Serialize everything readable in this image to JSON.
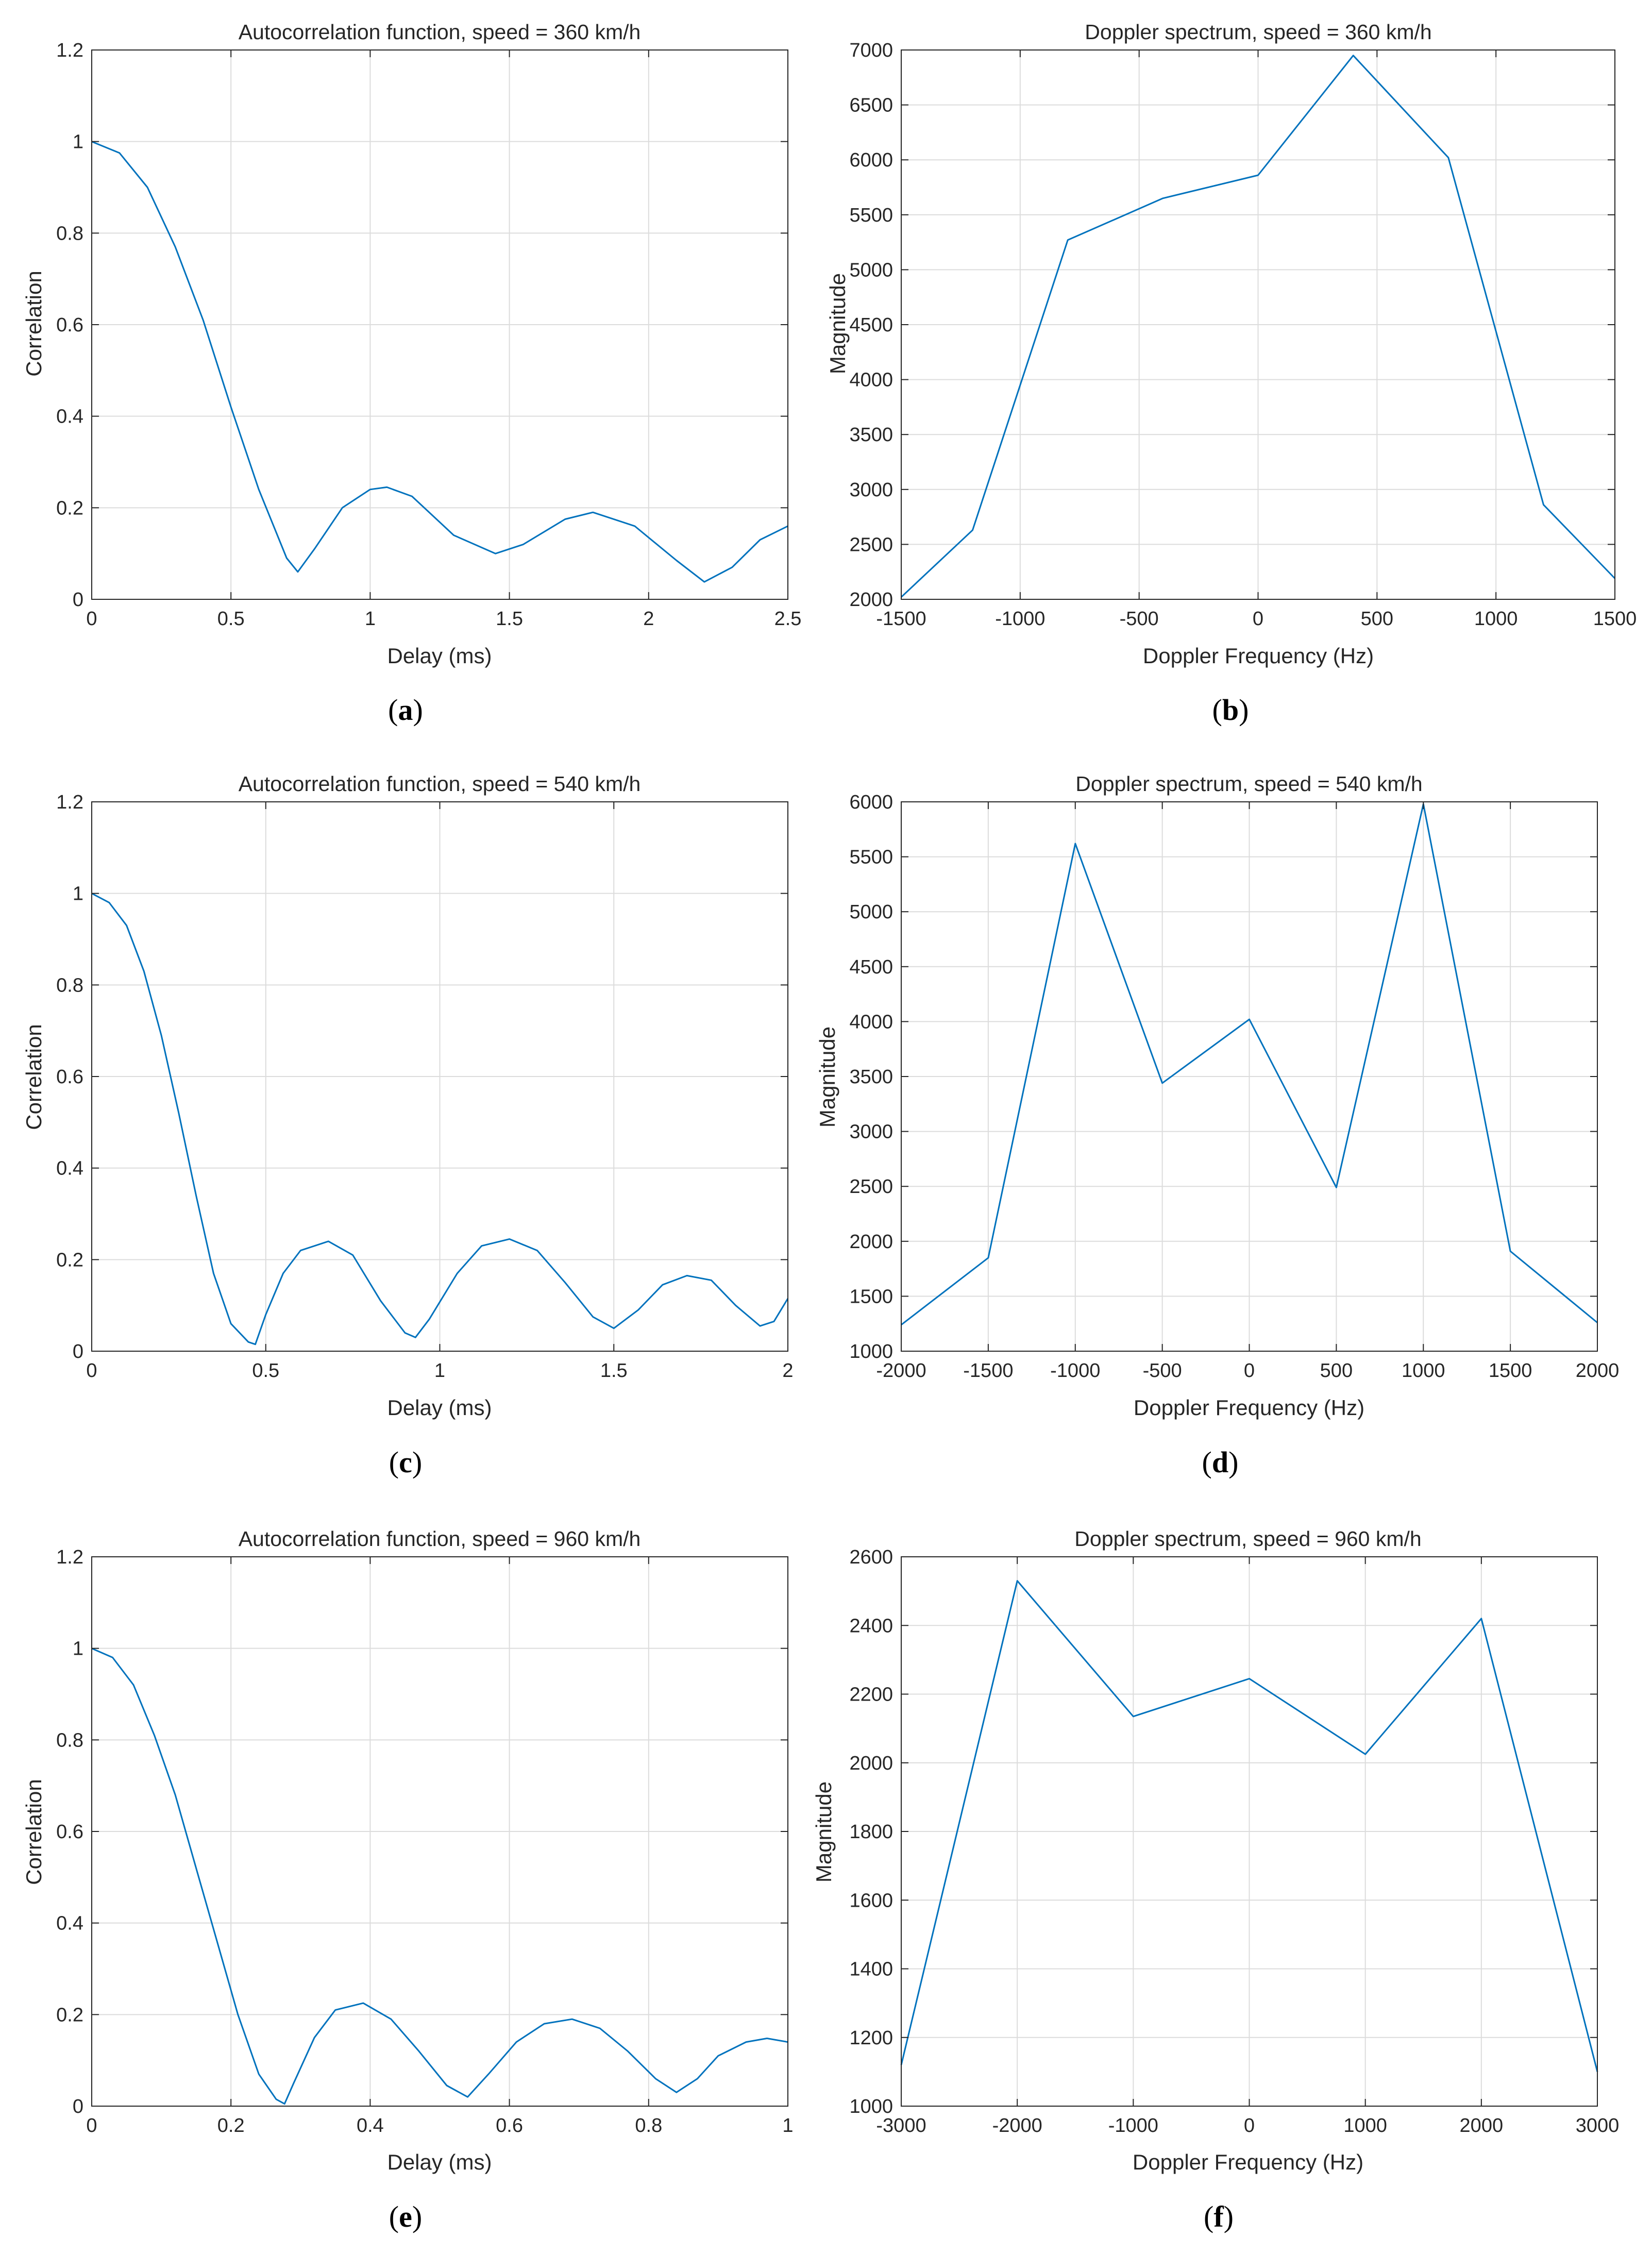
{
  "colors": {
    "series": "#0072bd",
    "axis": "#262626",
    "grid": "#dcdcdc"
  },
  "chart_data": [
    {
      "id": "a",
      "type": "line",
      "caption": "a",
      "title": "Autocorrelation function, speed = 360 km/h",
      "xlabel": "Delay (ms)",
      "ylabel": "Correlation",
      "xlim": [
        0,
        2.5
      ],
      "ylim": [
        0,
        1.2
      ],
      "xticks": [
        0,
        0.5,
        1,
        1.5,
        2,
        2.5
      ],
      "xtick_labels": [
        "0",
        "0.5",
        "1",
        "1.5",
        "2",
        "2.5"
      ],
      "yticks": [
        0,
        0.2,
        0.4,
        0.6,
        0.8,
        1,
        1.2
      ],
      "ytick_labels": [
        "0",
        "0.2",
        "0.4",
        "0.6",
        "0.8",
        "1",
        "1.2"
      ],
      "grid": true,
      "series": [
        {
          "name": "autocorrelation",
          "x": [
            0,
            0.1,
            0.2,
            0.3,
            0.4,
            0.5,
            0.6,
            0.7,
            0.74,
            0.8,
            0.9,
            1.0,
            1.06,
            1.15,
            1.3,
            1.45,
            1.55,
            1.7,
            1.8,
            1.95,
            2.1,
            2.2,
            2.3,
            2.4,
            2.5
          ],
          "y": [
            1.0,
            0.975,
            0.9,
            0.77,
            0.61,
            0.42,
            0.24,
            0.09,
            0.06,
            0.11,
            0.2,
            0.24,
            0.245,
            0.225,
            0.14,
            0.1,
            0.12,
            0.175,
            0.19,
            0.16,
            0.085,
            0.038,
            0.07,
            0.13,
            0.16
          ]
        }
      ]
    },
    {
      "id": "b",
      "type": "line",
      "caption": "b",
      "title": "Doppler spectrum, speed = 360 km/h",
      "xlabel": "Doppler Frequency (Hz)",
      "ylabel": "Magnitude",
      "xlim": [
        -1500,
        1500
      ],
      "ylim": [
        2000,
        7000
      ],
      "xticks": [
        -1500,
        -1000,
        -500,
        0,
        500,
        1000,
        1500
      ],
      "xtick_labels": [
        "-1500",
        "-1000",
        "-500",
        "0",
        "500",
        "1000",
        "1500"
      ],
      "yticks": [
        2000,
        2500,
        3000,
        3500,
        4000,
        4500,
        5000,
        5500,
        6000,
        6500,
        7000
      ],
      "ytick_labels": [
        "2000",
        "2500",
        "3000",
        "3500",
        "4000",
        "4500",
        "5000",
        "5500",
        "6000",
        "6500",
        "7000"
      ],
      "grid": true,
      "series": [
        {
          "name": "spectrum",
          "x": [
            -1500,
            -1200,
            -800,
            -400,
            0,
            400,
            800,
            1200,
            1500
          ],
          "y": [
            2020,
            2630,
            5270,
            5650,
            5860,
            6950,
            6020,
            2860,
            2190
          ]
        }
      ]
    },
    {
      "id": "c",
      "type": "line",
      "caption": "c",
      "title": "Autocorrelation function, speed = 540 km/h",
      "xlabel": "Delay (ms)",
      "ylabel": "Correlation",
      "xlim": [
        0,
        2
      ],
      "ylim": [
        0,
        1.2
      ],
      "xticks": [
        0,
        0.5,
        1,
        1.5,
        2
      ],
      "xtick_labels": [
        "0",
        "0.5",
        "1",
        "1.5",
        "2"
      ],
      "yticks": [
        0,
        0.2,
        0.4,
        0.6,
        0.8,
        1,
        1.2
      ],
      "ytick_labels": [
        "0",
        "0.2",
        "0.4",
        "0.6",
        "0.8",
        "1",
        "1.2"
      ],
      "grid": true,
      "series": [
        {
          "name": "autocorrelation",
          "x": [
            0,
            0.05,
            0.1,
            0.15,
            0.2,
            0.25,
            0.3,
            0.35,
            0.4,
            0.45,
            0.47,
            0.5,
            0.55,
            0.6,
            0.68,
            0.75,
            0.83,
            0.9,
            0.93,
            0.97,
            1.05,
            1.12,
            1.2,
            1.28,
            1.36,
            1.44,
            1.5,
            1.57,
            1.64,
            1.71,
            1.78,
            1.85,
            1.92,
            1.96,
            2.0
          ],
          "y": [
            1.0,
            0.98,
            0.93,
            0.83,
            0.69,
            0.52,
            0.34,
            0.17,
            0.06,
            0.02,
            0.015,
            0.08,
            0.17,
            0.22,
            0.24,
            0.21,
            0.11,
            0.04,
            0.03,
            0.07,
            0.17,
            0.23,
            0.245,
            0.22,
            0.15,
            0.075,
            0.05,
            0.09,
            0.145,
            0.165,
            0.155,
            0.1,
            0.055,
            0.065,
            0.115
          ]
        }
      ]
    },
    {
      "id": "d",
      "type": "line",
      "caption": "d",
      "title": "Doppler spectrum, speed = 540 km/h",
      "xlabel": "Doppler Frequency (Hz)",
      "ylabel": "Magnitude",
      "xlim": [
        -2000,
        2000
      ],
      "ylim": [
        1000,
        6000
      ],
      "xticks": [
        -2000,
        -1500,
        -1000,
        -500,
        0,
        500,
        1000,
        1500,
        2000
      ],
      "xtick_labels": [
        "-2000",
        "-1500",
        "-1000",
        "-500",
        "0",
        "500",
        "1000",
        "1500",
        "2000"
      ],
      "yticks": [
        1000,
        1500,
        2000,
        2500,
        3000,
        3500,
        4000,
        4500,
        5000,
        5500,
        6000
      ],
      "ytick_labels": [
        "1000",
        "1500",
        "2000",
        "2500",
        "3000",
        "3500",
        "4000",
        "4500",
        "5000",
        "5500",
        "6000"
      ],
      "grid": true,
      "series": [
        {
          "name": "spectrum",
          "x": [
            -2000,
            -1500,
            -1000,
            -500,
            0,
            500,
            1000,
            1500,
            2000
          ],
          "y": [
            1240,
            1850,
            5620,
            3440,
            4020,
            2490,
            5980,
            1910,
            1260
          ]
        }
      ]
    },
    {
      "id": "e",
      "type": "line",
      "caption": "e",
      "title": "Autocorrelation function, speed = 960 km/h",
      "xlabel": "Delay (ms)",
      "ylabel": "Correlation",
      "xlim": [
        0,
        1
      ],
      "ylim": [
        0,
        1.2
      ],
      "xticks": [
        0,
        0.2,
        0.4,
        0.6,
        0.8,
        1
      ],
      "xtick_labels": [
        "0",
        "0.2",
        "0.4",
        "0.6",
        "0.8",
        "1"
      ],
      "yticks": [
        0,
        0.2,
        0.4,
        0.6,
        0.8,
        1,
        1.2
      ],
      "ytick_labels": [
        "0",
        "0.2",
        "0.4",
        "0.6",
        "0.8",
        "1",
        "1.2"
      ],
      "grid": true,
      "series": [
        {
          "name": "autocorrelation",
          "x": [
            0,
            0.03,
            0.06,
            0.09,
            0.12,
            0.15,
            0.18,
            0.21,
            0.24,
            0.265,
            0.277,
            0.29,
            0.32,
            0.35,
            0.39,
            0.43,
            0.47,
            0.51,
            0.54,
            0.57,
            0.61,
            0.65,
            0.69,
            0.73,
            0.77,
            0.81,
            0.84,
            0.87,
            0.9,
            0.94,
            0.97,
            1.0
          ],
          "y": [
            1.0,
            0.98,
            0.92,
            0.81,
            0.68,
            0.52,
            0.36,
            0.2,
            0.07,
            0.015,
            0.005,
            0.05,
            0.15,
            0.21,
            0.225,
            0.19,
            0.12,
            0.045,
            0.02,
            0.07,
            0.14,
            0.18,
            0.19,
            0.17,
            0.12,
            0.06,
            0.03,
            0.06,
            0.11,
            0.14,
            0.148,
            0.14
          ]
        }
      ]
    },
    {
      "id": "f",
      "type": "line",
      "caption": "f",
      "title": "Doppler spectrum, speed = 960 km/h",
      "xlabel": "Doppler Frequency (Hz)",
      "ylabel": "Magnitude",
      "xlim": [
        -3000,
        3000
      ],
      "ylim": [
        1000,
        2600
      ],
      "xticks": [
        -3000,
        -2000,
        -1000,
        0,
        1000,
        2000,
        3000
      ],
      "xtick_labels": [
        "-3000",
        "-2000",
        "-1000",
        "0",
        "1000",
        "2000",
        "3000"
      ],
      "yticks": [
        1000,
        1200,
        1400,
        1600,
        1800,
        2000,
        2200,
        2400,
        2600
      ],
      "ytick_labels": [
        "1000",
        "1200",
        "1400",
        "1600",
        "1800",
        "2000",
        "2200",
        "2400",
        "2600"
      ],
      "grid": true,
      "series": [
        {
          "name": "spectrum",
          "x": [
            -3000,
            -2000,
            -1000,
            0,
            1000,
            2000,
            3000
          ],
          "y": [
            1120,
            2530,
            2135,
            2245,
            2025,
            2420,
            1100
          ]
        }
      ]
    }
  ]
}
